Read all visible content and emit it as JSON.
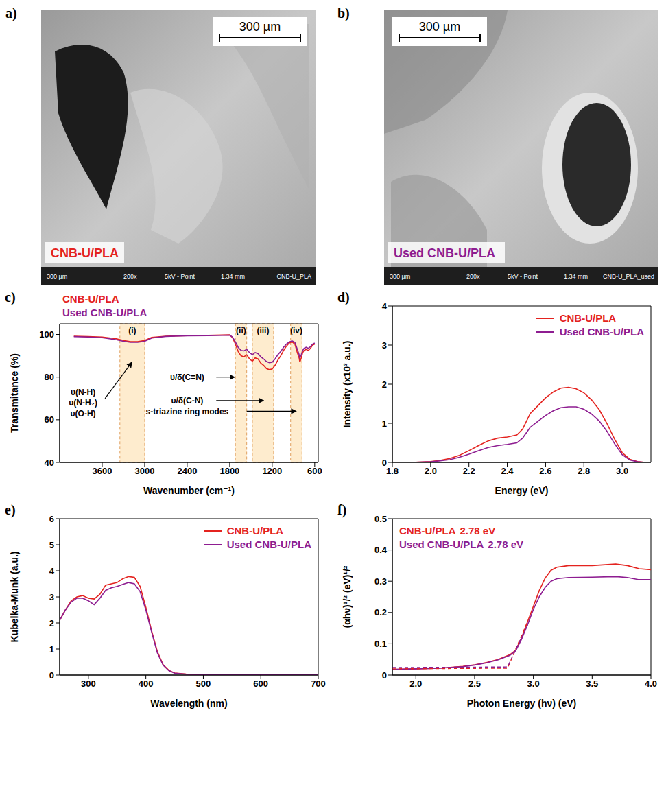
{
  "images": [
    {
      "panel": "a)",
      "scale_bar": "300 µm",
      "label": "CNB-U/PLA",
      "color": "#e4231f",
      "footer": [
        "300 µm",
        "200x",
        "5kV - Point",
        "1.34 mm",
        "CNB-U_PLA"
      ]
    },
    {
      "panel": "b)",
      "scale_bar": "300 µm",
      "label": "Used CNB-U/PLA",
      "color": "#8e1d91",
      "footer": [
        "300 µm",
        "200x",
        "5kV - Point",
        "1.34 mm",
        "CNB-U_PLA_used"
      ]
    }
  ],
  "chart_data": [
    {
      "type": "line",
      "panel": "c)",
      "x_label": "Wavenumber (cm⁻¹)",
      "y_label": "Transmitance (%)",
      "xlim": [
        4200,
        550
      ],
      "xticks": [
        3600,
        3000,
        2400,
        1800,
        1200,
        600
      ],
      "ylim": [
        40,
        105
      ],
      "yticks": [
        40,
        60,
        80,
        100
      ],
      "legend": "top",
      "bands": [
        {
          "label": "(i)",
          "x": [
            3350,
            3000
          ]
        },
        {
          "label": "(ii)",
          "x": [
            1720,
            1560
          ]
        },
        {
          "label": "(iii)",
          "x": [
            1480,
            1180
          ]
        },
        {
          "label": "(iv)",
          "x": [
            940,
            780
          ]
        }
      ],
      "annotations": [
        {
          "text": "υ(N-H)",
          "x": 3870,
          "y": 73
        },
        {
          "text": "υ(N-H₂)",
          "x": 3870,
          "y": 68,
          "arrow": [
            [
              3560,
              70
            ],
            [
              3180,
              87
            ]
          ]
        },
        {
          "text": "υ(O-H)",
          "x": 3870,
          "y": 63
        },
        {
          "text": "υ/δ(C=N)",
          "x": 2400,
          "y": 80,
          "arrow": [
            [
              1990,
              80
            ],
            [
              1730,
              80
            ]
          ]
        },
        {
          "text": "υ/δ(C-N)",
          "x": 2400,
          "y": 69,
          "arrow": [
            [
              1990,
              69
            ],
            [
              1320,
              69
            ]
          ]
        },
        {
          "text": "s-triazine ring modes",
          "x": 2400,
          "y": 64,
          "arrow": [
            [
              1560,
              64
            ],
            [
              860,
              64
            ]
          ]
        }
      ],
      "series": [
        {
          "name": "CNB-U/PLA",
          "color": "#e4231f",
          "x": [
            4000,
            3800,
            3600,
            3400,
            3300,
            3200,
            3100,
            3000,
            2900,
            2700,
            2400,
            2100,
            1800,
            1760,
            1720,
            1680,
            1640,
            1600,
            1560,
            1520,
            1480,
            1440,
            1400,
            1360,
            1320,
            1280,
            1240,
            1200,
            1160,
            1120,
            1080,
            1040,
            1000,
            960,
            920,
            880,
            850,
            820,
            810,
            790,
            770,
            750,
            720,
            690,
            660,
            630,
            600
          ],
          "values": [
            99.2,
            99,
            98.8,
            98,
            97.2,
            96.6,
            96.6,
            97.2,
            98.6,
            99.2,
            99.5,
            99.6,
            99.8,
            98.5,
            95.5,
            92,
            90,
            89.5,
            90.5,
            88.5,
            87.5,
            89,
            88.5,
            86.5,
            85.5,
            84,
            83.5,
            83.8,
            85.5,
            88,
            90,
            92.5,
            94.5,
            96,
            96.5,
            95.5,
            92,
            89,
            87,
            89,
            91.5,
            92.5,
            93,
            92.5,
            93.5,
            95,
            95.5
          ]
        },
        {
          "name": "Used CNB-U/PLA",
          "color": "#8e1d91",
          "x": [
            4000,
            3800,
            3600,
            3400,
            3300,
            3200,
            3100,
            3000,
            2900,
            2700,
            2400,
            2100,
            1800,
            1760,
            1720,
            1680,
            1640,
            1600,
            1560,
            1520,
            1480,
            1440,
            1400,
            1360,
            1320,
            1280,
            1240,
            1200,
            1160,
            1120,
            1080,
            1040,
            1000,
            960,
            920,
            880,
            850,
            820,
            810,
            790,
            770,
            750,
            720,
            690,
            660,
            630,
            600
          ],
          "values": [
            99,
            98.8,
            98.5,
            97.5,
            96.8,
            96.3,
            96.3,
            96.8,
            98.3,
            99.1,
            99.4,
            99.5,
            99.7,
            98.8,
            96.5,
            94,
            92.5,
            92.3,
            93,
            91.5,
            90.5,
            91.5,
            91,
            89.5,
            88.5,
            87.3,
            86.8,
            87,
            88.5,
            90.5,
            92,
            94,
            95.5,
            96.5,
            97,
            96.3,
            93.5,
            90.5,
            89,
            90.5,
            92.5,
            93.5,
            94,
            93.5,
            94.3,
            95.5,
            96
          ]
        }
      ]
    },
    {
      "type": "line",
      "panel": "d)",
      "x_label": "Energy (eV)",
      "y_label": "Intensity (x10³ a.u.)",
      "xlim": [
        1.8,
        3.15
      ],
      "xticks": [
        1.8,
        {
          "value": 2,
          "label": "2.0"
        },
        2.2,
        2.4,
        2.6,
        2.8,
        {
          "value": 3,
          "label": "3.0"
        }
      ],
      "ylim": [
        0,
        4
      ],
      "yticks": [
        0,
        1,
        2,
        3,
        4
      ],
      "legend": "top-right",
      "series": [
        {
          "name": "CNB-U/PLA",
          "color": "#e4231f",
          "x": [
            1.8,
            1.9,
            2.0,
            2.05,
            2.1,
            2.15,
            2.2,
            2.25,
            2.3,
            2.35,
            2.4,
            2.45,
            2.48,
            2.52,
            2.56,
            2.6,
            2.64,
            2.68,
            2.72,
            2.76,
            2.8,
            2.84,
            2.88,
            2.92,
            2.96,
            3.0,
            3.04,
            3.08,
            3.12,
            3.15
          ],
          "values": [
            0,
            0,
            0.02,
            0.05,
            0.1,
            0.18,
            0.3,
            0.43,
            0.55,
            0.62,
            0.65,
            0.7,
            0.85,
            1.25,
            1.45,
            1.65,
            1.8,
            1.9,
            1.92,
            1.88,
            1.78,
            1.6,
            1.35,
            1.0,
            0.6,
            0.25,
            0.08,
            0.02,
            0,
            0
          ]
        },
        {
          "name": "Used CNB-U/PLA",
          "color": "#8e1d91",
          "x": [
            1.8,
            1.9,
            2.0,
            2.05,
            2.1,
            2.15,
            2.2,
            2.25,
            2.3,
            2.35,
            2.4,
            2.45,
            2.48,
            2.52,
            2.56,
            2.6,
            2.64,
            2.68,
            2.72,
            2.76,
            2.8,
            2.84,
            2.88,
            2.92,
            2.96,
            3.0,
            3.04,
            3.08,
            3.12,
            3.15
          ],
          "values": [
            0,
            0,
            0.015,
            0.04,
            0.07,
            0.13,
            0.21,
            0.3,
            0.38,
            0.43,
            0.46,
            0.5,
            0.62,
            0.9,
            1.05,
            1.2,
            1.32,
            1.4,
            1.42,
            1.42,
            1.36,
            1.24,
            1.06,
            0.8,
            0.48,
            0.2,
            0.06,
            0.015,
            0,
            0
          ]
        }
      ]
    },
    {
      "type": "line",
      "panel": "e)",
      "x_label": "Wavelength (nm)",
      "y_label": "Kubelka-Munk (a.u.)",
      "xlim": [
        250,
        700
      ],
      "xticks": [
        300,
        400,
        500,
        600,
        700
      ],
      "ylim": [
        0,
        6
      ],
      "yticks": [
        0,
        1,
        2,
        3,
        4,
        5,
        6
      ],
      "legend": "top-right",
      "series": [
        {
          "name": "CNB-U/PLA",
          "color": "#e4231f",
          "x": [
            250,
            260,
            270,
            280,
            290,
            300,
            310,
            320,
            330,
            340,
            350,
            360,
            370,
            380,
            390,
            400,
            410,
            420,
            430,
            440,
            450,
            470,
            500,
            550,
            600,
            650,
            700
          ],
          "values": [
            2.1,
            2.5,
            2.85,
            3.0,
            3.05,
            2.95,
            2.92,
            3.1,
            3.45,
            3.5,
            3.55,
            3.7,
            3.78,
            3.75,
            3.4,
            2.6,
            1.7,
            0.9,
            0.4,
            0.18,
            0.08,
            0.04,
            0.02,
            0.015,
            0.01,
            0.01,
            0.01
          ]
        },
        {
          "name": "Used CNB-U/PLA",
          "color": "#8e1d91",
          "x": [
            250,
            260,
            270,
            280,
            290,
            300,
            310,
            320,
            330,
            340,
            350,
            360,
            370,
            380,
            390,
            400,
            410,
            420,
            430,
            440,
            450,
            470,
            500,
            550,
            600,
            650,
            700
          ],
          "values": [
            2.1,
            2.5,
            2.8,
            2.95,
            2.95,
            2.85,
            2.7,
            2.95,
            3.25,
            3.35,
            3.4,
            3.48,
            3.55,
            3.5,
            3.2,
            2.5,
            1.65,
            0.85,
            0.38,
            0.17,
            0.07,
            0.03,
            0.02,
            0.015,
            0.01,
            0.01,
            0.01
          ]
        }
      ]
    },
    {
      "type": "line",
      "panel": "f)",
      "x_label": "Photon Energy (hν) (eV)",
      "y_label": "(αhν)¹/²  (eV)¹/²",
      "xlim": [
        1.8,
        4.0
      ],
      "xticks": [
        {
          "value": 2,
          "label": "2.0"
        },
        2.5,
        {
          "value": 3,
          "label": "3.0"
        },
        3.5,
        {
          "value": 4,
          "label": "4.0"
        }
      ],
      "ylim": [
        0,
        0.5
      ],
      "yticks": [
        0,
        0.1,
        0.2,
        0.3,
        0.4,
        0.5
      ],
      "legend": "top-left",
      "series": [
        {
          "name": "CNB-U/PLA",
          "color": "#e4231f",
          "band_gap": {
            "value": 2.78,
            "label": "2.78 eV"
          },
          "x": [
            1.8,
            2.0,
            2.2,
            2.4,
            2.5,
            2.6,
            2.7,
            2.8,
            2.85,
            2.9,
            2.95,
            3.0,
            3.05,
            3.1,
            3.15,
            3.2,
            3.3,
            3.5,
            3.7,
            3.8,
            3.9,
            4.0
          ],
          "values": [
            0.018,
            0.02,
            0.022,
            0.028,
            0.033,
            0.04,
            0.05,
            0.065,
            0.08,
            0.12,
            0.17,
            0.22,
            0.27,
            0.31,
            0.335,
            0.345,
            0.35,
            0.35,
            0.355,
            0.35,
            0.34,
            0.337
          ],
          "fit": {
            "line_style": "dashed",
            "x": [
              1.8,
              2.78,
              2.95
            ],
            "values": [
              0.02,
              0.022,
              0.17
            ]
          }
        },
        {
          "name": "Used CNB-U/PLA",
          "color": "#8e1d91",
          "band_gap": {
            "value": 2.78,
            "label": "2.78 eV"
          },
          "x": [
            1.8,
            2.0,
            2.2,
            2.4,
            2.5,
            2.6,
            2.7,
            2.8,
            2.85,
            2.9,
            2.95,
            3.0,
            3.05,
            3.1,
            3.15,
            3.2,
            3.3,
            3.5,
            3.7,
            3.8,
            3.9,
            4.0
          ],
          "values": [
            0.018,
            0.02,
            0.022,
            0.027,
            0.032,
            0.039,
            0.049,
            0.063,
            0.078,
            0.115,
            0.16,
            0.21,
            0.25,
            0.28,
            0.3,
            0.308,
            0.312,
            0.313,
            0.315,
            0.312,
            0.305,
            0.305
          ],
          "fit": {
            "line_style": "dashed",
            "x": [
              1.8,
              2.78,
              2.95
            ],
            "values": [
              0.024,
              0.026,
              0.16
            ]
          }
        }
      ]
    }
  ]
}
